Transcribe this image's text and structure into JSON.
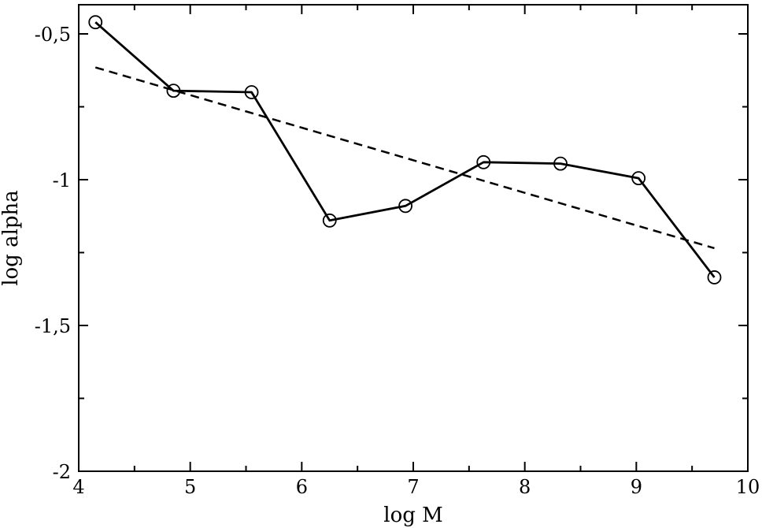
{
  "chart_data": {
    "type": "line",
    "title": "",
    "xlabel": "log M",
    "ylabel": "log alpha",
    "xlim": [
      4,
      10
    ],
    "ylim": [
      -2,
      -0.4
    ],
    "x_ticks": [
      {
        "value": 4,
        "label": "4"
      },
      {
        "value": 5,
        "label": "5"
      },
      {
        "value": 6,
        "label": "6"
      },
      {
        "value": 7,
        "label": "7"
      },
      {
        "value": 8,
        "label": "8"
      },
      {
        "value": 9,
        "label": "9"
      },
      {
        "value": 10,
        "label": "10"
      }
    ],
    "x_minor_ticks": [
      4.5,
      5.5,
      6.5,
      7.5,
      8.5,
      9.5
    ],
    "y_ticks": [
      {
        "value": -2,
        "label": "-2"
      },
      {
        "value": -1.5,
        "label": "-1,5"
      },
      {
        "value": -1,
        "label": "-1"
      },
      {
        "value": -0.5,
        "label": "-0,5"
      }
    ],
    "y_minor_ticks": [
      -1.75,
      -1.25,
      -0.75
    ],
    "grid": false,
    "series": [
      {
        "style": "solid",
        "marker": "open-circle",
        "color": "#000000",
        "x": [
          4.15,
          4.85,
          5.55,
          6.25,
          6.93,
          7.63,
          8.32,
          9.02,
          9.7
        ],
        "y": [
          -0.46,
          -0.695,
          -0.7,
          -1.14,
          -1.09,
          -0.94,
          -0.945,
          -0.995,
          -1.335
        ]
      },
      {
        "style": "dashed",
        "marker": "none",
        "color": "#000000",
        "x": [
          4.15,
          9.7
        ],
        "y": [
          -0.615,
          -1.235
        ]
      }
    ]
  }
}
